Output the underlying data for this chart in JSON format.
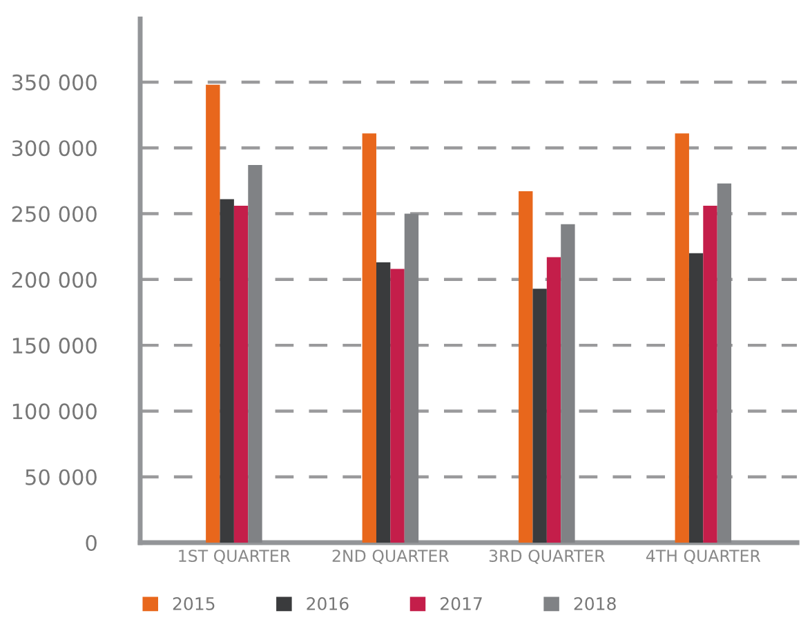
{
  "chart_data": {
    "type": "bar",
    "categories": [
      "1ST QUARTER",
      "2ND QUARTER",
      "3RD QUARTER",
      "4TH QUARTER"
    ],
    "series": [
      {
        "name": "2015",
        "color": "#e8671c",
        "values": [
          348000,
          311000,
          267000,
          311000
        ]
      },
      {
        "name": "2016",
        "color": "#3a3b3d",
        "values": [
          261000,
          213000,
          193000,
          220000
        ]
      },
      {
        "name": "2017",
        "color": "#c41e4a",
        "values": [
          256000,
          208000,
          217000,
          256000
        ]
      },
      {
        "name": "2018",
        "color": "#808285",
        "values": [
          287000,
          250000,
          242000,
          273000
        ]
      }
    ],
    "ylim": [
      0,
      398000
    ],
    "yticks": [
      0,
      {
        "value": 50000,
        "label": "50 000"
      },
      {
        "value": 100000,
        "label": "100 000"
      },
      {
        "value": 150000,
        "label": "150 000"
      },
      {
        "value": 200000,
        "label": "200 000"
      },
      {
        "value": 250000,
        "label": "250 000"
      },
      {
        "value": 300000,
        "label": "300 000"
      },
      {
        "value": 350000,
        "label": "350 000"
      }
    ],
    "grid": "y",
    "legend": "bottom"
  }
}
